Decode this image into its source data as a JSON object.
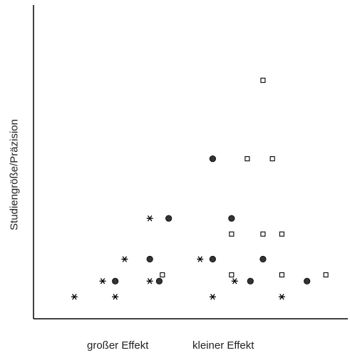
{
  "chart_data": {
    "type": "scatter",
    "title": "",
    "xlabel_left": "großer Effekt",
    "xlabel_right": "kleiner Effekt",
    "ylabel": "Studiengröße/Präzision",
    "xlim": [
      0,
      100
    ],
    "ylim": [
      0,
      100
    ],
    "grid": false,
    "legend": "none",
    "colors": {
      "axis": "#000000",
      "marker": "#000000",
      "filled": "#333333"
    },
    "series": [
      {
        "marker": "star",
        "points": [
          {
            "x": 13,
            "y": 7
          },
          {
            "x": 26,
            "y": 7
          },
          {
            "x": 57,
            "y": 7
          },
          {
            "x": 79,
            "y": 7
          },
          {
            "x": 22,
            "y": 12
          },
          {
            "x": 37,
            "y": 12
          },
          {
            "x": 64,
            "y": 12
          },
          {
            "x": 29,
            "y": 19
          },
          {
            "x": 53,
            "y": 19
          },
          {
            "x": 37,
            "y": 32
          }
        ]
      },
      {
        "marker": "filled-circle",
        "points": [
          {
            "x": 26,
            "y": 12
          },
          {
            "x": 40,
            "y": 12
          },
          {
            "x": 69,
            "y": 12
          },
          {
            "x": 87,
            "y": 12
          },
          {
            "x": 37,
            "y": 19
          },
          {
            "x": 57,
            "y": 19
          },
          {
            "x": 73,
            "y": 19
          },
          {
            "x": 43,
            "y": 32
          },
          {
            "x": 63,
            "y": 32
          },
          {
            "x": 57,
            "y": 51
          }
        ]
      },
      {
        "marker": "open-square",
        "points": [
          {
            "x": 41,
            "y": 14
          },
          {
            "x": 63,
            "y": 14
          },
          {
            "x": 79,
            "y": 14
          },
          {
            "x": 93,
            "y": 14
          },
          {
            "x": 63,
            "y": 27
          },
          {
            "x": 73,
            "y": 27
          },
          {
            "x": 79,
            "y": 27
          },
          {
            "x": 68,
            "y": 51
          },
          {
            "x": 76,
            "y": 51
          },
          {
            "x": 73,
            "y": 76
          }
        ]
      }
    ]
  }
}
